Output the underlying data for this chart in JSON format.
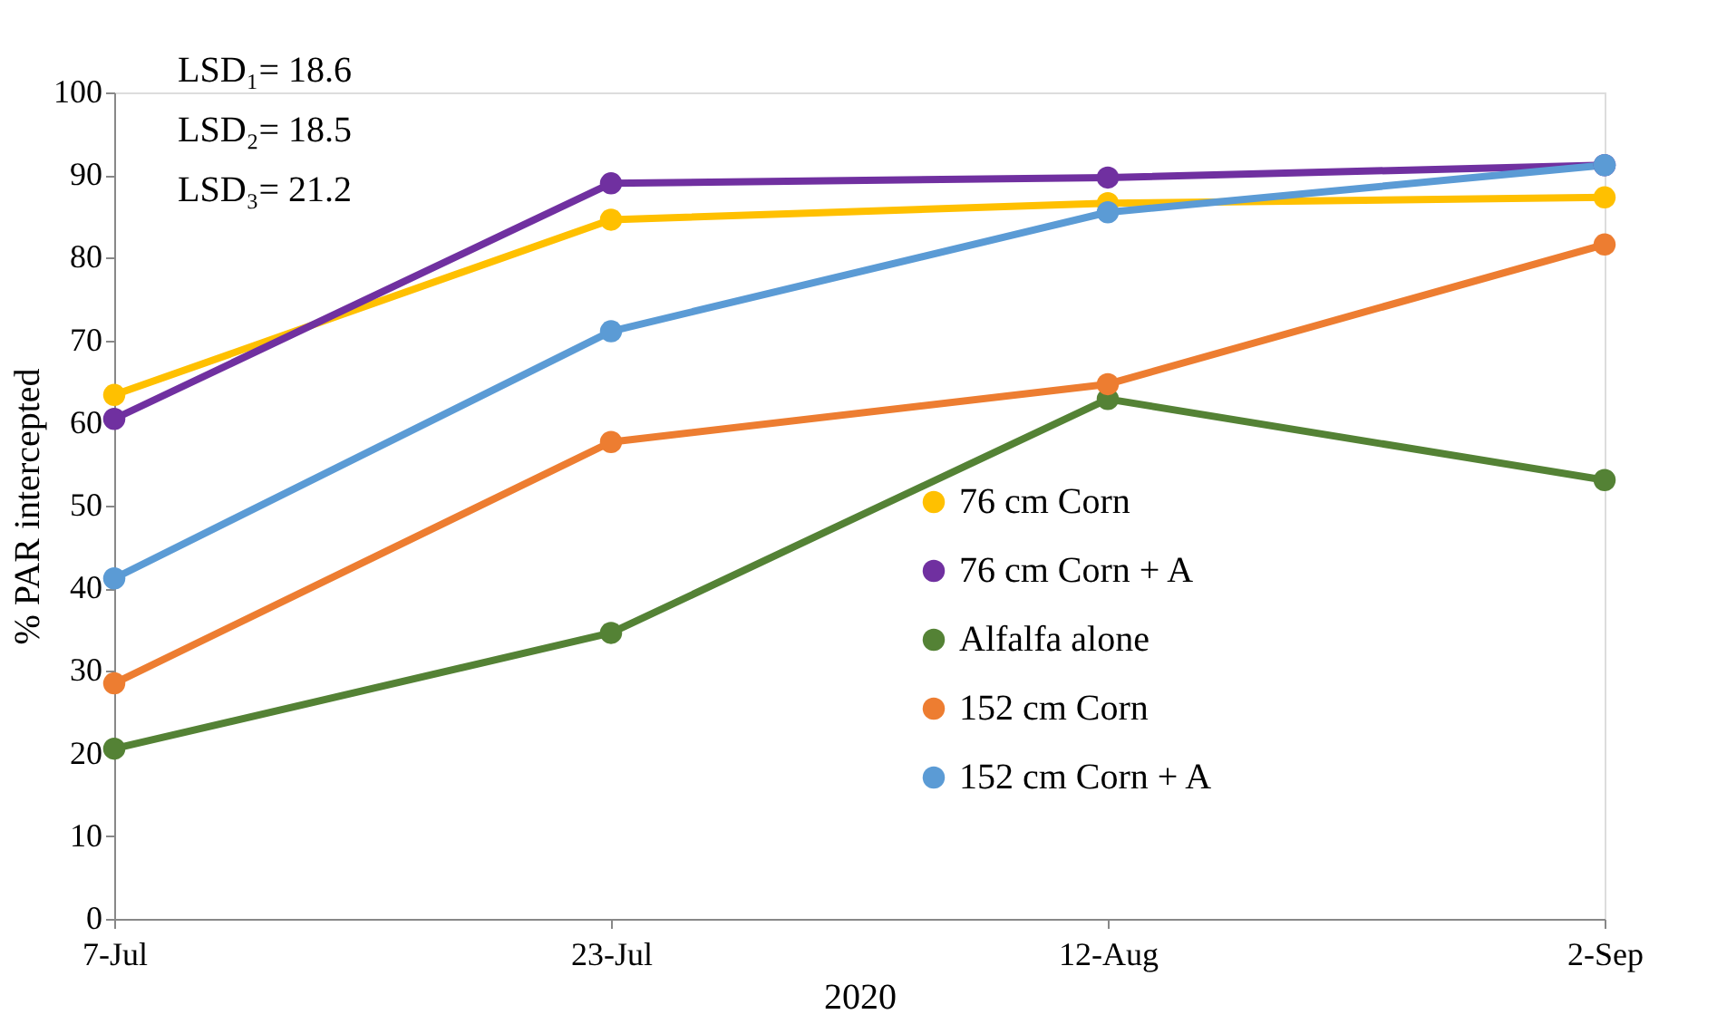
{
  "chart_data": {
    "type": "line",
    "xlabel": "2020",
    "ylabel": "% PAR intercepted",
    "categories": [
      "7-Jul",
      "23-Jul",
      "12-Aug",
      "2-Sep"
    ],
    "series": [
      {
        "name": "76 cm Corn",
        "color": "#ffc000",
        "values": [
          63.4,
          84.6,
          86.6,
          87.3
        ]
      },
      {
        "name": "76 cm Corn + A",
        "color": "#7030a0",
        "values": [
          60.5,
          89.0,
          89.7,
          91.2
        ]
      },
      {
        "name": "Alfalfa alone",
        "color": "#548235",
        "values": [
          20.6,
          34.6,
          62.9,
          53.1
        ]
      },
      {
        "name": "152 cm Corn",
        "color": "#ed7d31",
        "values": [
          28.5,
          57.7,
          64.7,
          81.6
        ]
      },
      {
        "name": "152 cm Corn + A",
        "color": "#5b9bd5",
        "values": [
          41.2,
          71.1,
          85.5,
          91.2
        ]
      }
    ],
    "ylim": [
      0,
      100
    ],
    "yticks": [
      0,
      10,
      20,
      30,
      40,
      50,
      60,
      70,
      80,
      90,
      100
    ],
    "annotations": [
      "LSD₁= 18.6",
      "LSD₂= 18.5",
      "LSD₃= 21.2"
    ],
    "grid": false,
    "legend": "bottom right",
    "marker": "circle",
    "line_style": "solid"
  }
}
